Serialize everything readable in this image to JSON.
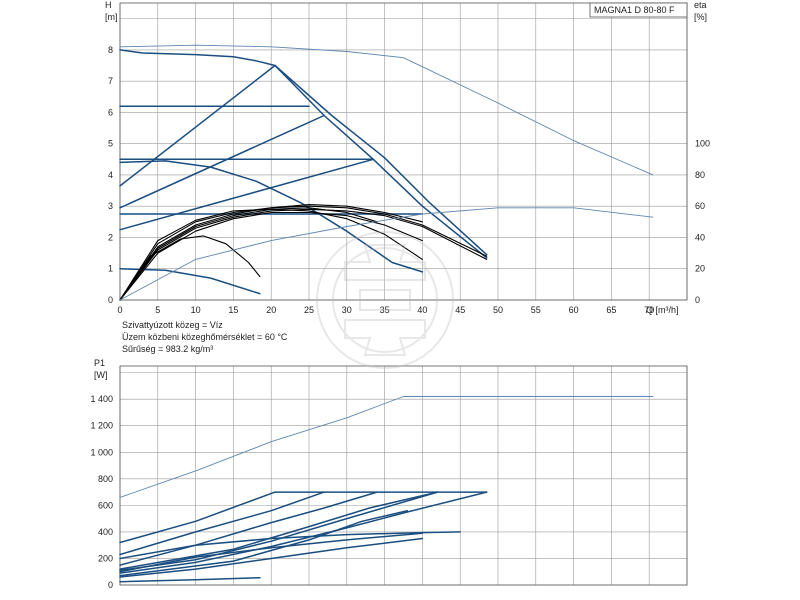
{
  "title_box": "MAGNA1 D 80-80 F",
  "notes": [
    "Szivattyúzott közeg = Víz",
    "Üzem közbeni közeghőmérséklet = 60 °C",
    "Sűrűség = 983.2 kg/m³"
  ],
  "colors": {
    "primary": "#1a4d80",
    "secondary": "#5f86b0",
    "black": "#000000",
    "grid": "#9a9a9a"
  },
  "chart_data": [
    {
      "type": "line",
      "name": "head-and-efficiency",
      "xlabel": "Q [m³/h]",
      "ylabel": "H\n[m]",
      "y2label": "eta\n[%]",
      "xlim": [
        0,
        75
      ],
      "ylim": [
        0,
        9.5
      ],
      "y2lim": [
        0,
        190
      ],
      "x_ticks": [
        "0",
        "5",
        "10",
        "15",
        "20",
        "25",
        "30",
        "35",
        "40",
        "45",
        "50",
        "55",
        "60",
        "65",
        "70"
      ],
      "y_ticks": [
        "0",
        "1",
        "2",
        "3",
        "4",
        "5",
        "6",
        "7",
        "8"
      ],
      "y2_ticks": [
        "0",
        "20",
        "40",
        "60",
        "80",
        "100"
      ],
      "grid": true,
      "series": [
        {
          "style": "secondary",
          "axis": "y",
          "points": [
            [
              0,
              8.1
            ],
            [
              10,
              8.15
            ],
            [
              20,
              8.1
            ],
            [
              30,
              7.95
            ],
            [
              37.5,
              7.75
            ],
            [
              50,
              6.3
            ],
            [
              60,
              5.1
            ],
            [
              70.5,
              4.0
            ]
          ]
        },
        {
          "style": "primary",
          "axis": "y",
          "points": [
            [
              0,
              8.0
            ],
            [
              3,
              7.9
            ],
            [
              10,
              7.85
            ],
            [
              15,
              7.78
            ],
            [
              18,
              7.65
            ],
            [
              20.5,
              7.5
            ]
          ]
        },
        {
          "style": "primary",
          "axis": "y",
          "points": [
            [
              20.5,
              7.5
            ],
            [
              27,
              5.9
            ],
            [
              33.5,
              4.5
            ],
            [
              40,
              3.0
            ],
            [
              48.5,
              1.35
            ]
          ]
        },
        {
          "style": "primary",
          "axis": "y",
          "points": [
            [
              20.5,
              7.5
            ],
            [
              28,
              5.9
            ],
            [
              35,
              4.55
            ],
            [
              41,
              3.1
            ],
            [
              48.5,
              1.45
            ]
          ]
        },
        {
          "style": "primary",
          "axis": "y",
          "points": [
            [
              0,
              6.2
            ],
            [
              25,
              6.2
            ]
          ]
        },
        {
          "style": "primary",
          "axis": "y",
          "points": [
            [
              0,
              4.5
            ],
            [
              33.5,
              4.5
            ]
          ]
        },
        {
          "style": "primary",
          "axis": "y",
          "points": [
            [
              0,
              2.75
            ],
            [
              40,
              2.75
            ]
          ]
        },
        {
          "style": "primary",
          "axis": "y",
          "points": [
            [
              0,
              3.65
            ],
            [
              20.5,
              7.5
            ]
          ]
        },
        {
          "style": "primary",
          "axis": "y",
          "points": [
            [
              0,
              2.95
            ],
            [
              27,
              5.9
            ]
          ]
        },
        {
          "style": "primary",
          "axis": "y",
          "points": [
            [
              0,
              2.25
            ],
            [
              33.5,
              4.5
            ]
          ]
        },
        {
          "style": "primary",
          "axis": "y",
          "points": [
            [
              0,
              4.4
            ],
            [
              6,
              4.45
            ],
            [
              12,
              4.25
            ],
            [
              18,
              3.8
            ],
            [
              24,
              3.1
            ],
            [
              30,
              2.2
            ],
            [
              36,
              1.2
            ],
            [
              40,
              0.9
            ]
          ]
        },
        {
          "style": "primary",
          "axis": "y",
          "points": [
            [
              0,
              1.0
            ],
            [
              6,
              0.95
            ],
            [
              12,
              0.7
            ],
            [
              18.5,
              0.2
            ]
          ]
        },
        {
          "style": "black",
          "axis": "y",
          "points": [
            [
              0,
              0
            ],
            [
              5,
              1.6
            ],
            [
              10,
              2.3
            ],
            [
              15,
              2.65
            ],
            [
              20,
              2.85
            ],
            [
              25,
              2.9
            ],
            [
              30,
              2.85
            ],
            [
              35,
              2.7
            ],
            [
              40,
              2.35
            ],
            [
              48.5,
              1.3
            ]
          ]
        },
        {
          "style": "black",
          "axis": "y",
          "points": [
            [
              0,
              0
            ],
            [
              5,
              1.7
            ],
            [
              10,
              2.4
            ],
            [
              15,
              2.75
            ],
            [
              20,
              2.95
            ],
            [
              25,
              3.0
            ],
            [
              30,
              2.95
            ],
            [
              35,
              2.75
            ],
            [
              40,
              2.4
            ],
            [
              48.5,
              1.4
            ]
          ]
        },
        {
          "style": "black",
          "axis": "y",
          "points": [
            [
              0,
              0
            ],
            [
              5,
              1.8
            ],
            [
              10,
              2.5
            ],
            [
              15,
              2.8
            ],
            [
              20,
              2.95
            ],
            [
              25,
              3.05
            ],
            [
              30,
              3.0
            ],
            [
              35,
              2.8
            ],
            [
              40,
              2.5
            ]
          ]
        },
        {
          "style": "black",
          "axis": "y",
          "points": [
            [
              0,
              0
            ],
            [
              5,
              1.5
            ],
            [
              10,
              2.2
            ],
            [
              15,
              2.6
            ],
            [
              20,
              2.8
            ],
            [
              25,
              2.8
            ],
            [
              30,
              2.7
            ],
            [
              35,
              2.4
            ],
            [
              40,
              1.9
            ]
          ]
        },
        {
          "style": "black",
          "axis": "y",
          "points": [
            [
              0,
              0
            ],
            [
              5,
              1.9
            ],
            [
              10,
              2.55
            ],
            [
              15,
              2.85
            ],
            [
              20,
              2.9
            ],
            [
              25,
              2.85
            ],
            [
              30,
              2.6
            ],
            [
              35,
              2.1
            ],
            [
              40,
              1.3
            ]
          ]
        },
        {
          "style": "black",
          "axis": "y",
          "points": [
            [
              0,
              0
            ],
            [
              4,
              1.4
            ],
            [
              8,
              1.95
            ],
            [
              11,
              2.05
            ],
            [
              14,
              1.8
            ],
            [
              17,
              1.2
            ],
            [
              18.5,
              0.75
            ]
          ]
        },
        {
          "style": "black",
          "axis": "y",
          "points": [
            [
              0,
              0
            ],
            [
              5,
              1.65
            ],
            [
              10,
              2.35
            ],
            [
              15,
              2.7
            ],
            [
              20,
              2.9
            ],
            [
              25,
              2.95
            ],
            [
              30,
              2.8
            ],
            [
              34,
              2.5
            ]
          ]
        },
        {
          "style": "secondary",
          "axis": "y2",
          "points": [
            [
              0,
              0
            ],
            [
              10,
              26
            ],
            [
              20,
              38
            ],
            [
              30,
              47
            ],
            [
              40,
              55
            ],
            [
              50,
              59
            ],
            [
              60,
              59
            ],
            [
              70.5,
              53
            ]
          ]
        }
      ]
    },
    {
      "type": "line",
      "name": "power",
      "xlabel": "",
      "ylabel": "P1\n[W]",
      "xlim": [
        0,
        75
      ],
      "ylim": [
        0,
        1650
      ],
      "y_ticks": [
        "0",
        "200",
        "400",
        "600",
        "800",
        "1 000",
        "1 200",
        "1 400"
      ],
      "grid": true,
      "series": [
        {
          "style": "secondary",
          "points": [
            [
              0,
              660
            ],
            [
              10,
              860
            ],
            [
              20,
              1080
            ],
            [
              30,
              1260
            ],
            [
              37.5,
              1420
            ],
            [
              50,
              1420
            ],
            [
              70.5,
              1420
            ]
          ]
        },
        {
          "style": "primary",
          "points": [
            [
              20.5,
              700
            ],
            [
              48.5,
              700
            ]
          ]
        },
        {
          "style": "primary",
          "points": [
            [
              0,
              320
            ],
            [
              10,
              480
            ],
            [
              20.5,
              700
            ]
          ]
        },
        {
          "style": "primary",
          "points": [
            [
              0,
              230
            ],
            [
              10,
              400
            ],
            [
              20,
              560
            ],
            [
              27,
              700
            ]
          ]
        },
        {
          "style": "primary",
          "points": [
            [
              0,
              150
            ],
            [
              10,
              300
            ],
            [
              20,
              470
            ],
            [
              27,
              580
            ],
            [
              34,
              700
            ]
          ]
        },
        {
          "style": "primary",
          "points": [
            [
              0,
              120
            ],
            [
              15,
              270
            ],
            [
              25,
              440
            ],
            [
              33,
              580
            ],
            [
              42,
              700
            ]
          ]
        },
        {
          "style": "primary",
          "points": [
            [
              0,
              110
            ],
            [
              10,
              190
            ],
            [
              20,
              330
            ],
            [
              30,
              500
            ],
            [
              42,
              700
            ]
          ]
        },
        {
          "style": "primary",
          "points": [
            [
              0,
              90
            ],
            [
              10,
              170
            ],
            [
              20,
              290
            ],
            [
              30,
              430
            ],
            [
              38,
              550
            ],
            [
              48.5,
              700
            ]
          ]
        },
        {
          "style": "primary",
          "points": [
            [
              0,
              70
            ],
            [
              15,
              180
            ],
            [
              25,
              340
            ],
            [
              32,
              480
            ],
            [
              38,
              560
            ]
          ]
        },
        {
          "style": "primary",
          "points": [
            [
              0,
              100
            ],
            [
              10,
              210
            ],
            [
              20,
              280
            ],
            [
              30,
              340
            ],
            [
              40,
              390
            ]
          ]
        },
        {
          "style": "primary",
          "points": [
            [
              0,
              200
            ],
            [
              10,
              300
            ],
            [
              20,
              350
            ],
            [
              30,
              380
            ],
            [
              40,
              395
            ],
            [
              45,
              400
            ]
          ]
        },
        {
          "style": "primary",
          "points": [
            [
              0,
              60
            ],
            [
              10,
              120
            ],
            [
              20,
              200
            ],
            [
              30,
              280
            ],
            [
              40,
              350
            ]
          ]
        },
        {
          "style": "primary",
          "points": [
            [
              0,
              25
            ],
            [
              10,
              40
            ],
            [
              18.5,
              55
            ]
          ]
        }
      ]
    }
  ]
}
